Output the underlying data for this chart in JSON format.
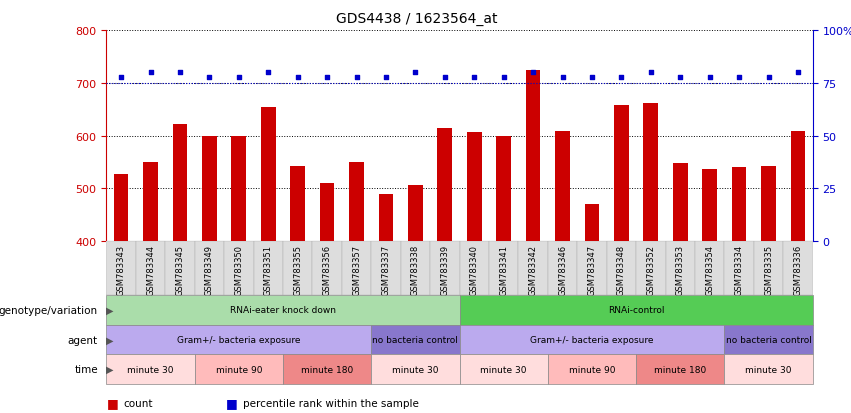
{
  "title": "GDS4438 / 1623564_at",
  "samples": [
    "GSM783343",
    "GSM783344",
    "GSM783345",
    "GSM783349",
    "GSM783350",
    "GSM783351",
    "GSM783355",
    "GSM783356",
    "GSM783357",
    "GSM783337",
    "GSM783338",
    "GSM783339",
    "GSM783340",
    "GSM783341",
    "GSM783342",
    "GSM783346",
    "GSM783347",
    "GSM783348",
    "GSM783352",
    "GSM783353",
    "GSM783354",
    "GSM783334",
    "GSM783335",
    "GSM783336"
  ],
  "counts": [
    528,
    550,
    622,
    600,
    600,
    654,
    543,
    510,
    550,
    490,
    507,
    614,
    607,
    600,
    725,
    608,
    471,
    658,
    662,
    549,
    537,
    540,
    543,
    608
  ],
  "percentiles": [
    78,
    80,
    80,
    78,
    78,
    80,
    78,
    78,
    78,
    78,
    80,
    78,
    78,
    78,
    80,
    78,
    78,
    78,
    80,
    78,
    78,
    78,
    78,
    80
  ],
  "ylim_left": [
    400,
    800
  ],
  "ylim_right": [
    0,
    100
  ],
  "yticks_left": [
    400,
    500,
    600,
    700,
    800
  ],
  "yticks_right": [
    0,
    25,
    50,
    75,
    100
  ],
  "bar_color": "#cc0000",
  "dot_color": "#0000cc",
  "annotation_row1": {
    "label": "genotype/variation",
    "groups": [
      {
        "text": "RNAi-eater knock down",
        "start": 0,
        "end": 12,
        "color": "#aaddaa"
      },
      {
        "text": "RNAi-control",
        "start": 12,
        "end": 24,
        "color": "#55cc55"
      }
    ]
  },
  "annotation_row2": {
    "label": "agent",
    "groups": [
      {
        "text": "Gram+/- bacteria exposure",
        "start": 0,
        "end": 9,
        "color": "#bbaaee"
      },
      {
        "text": "no bacteria control",
        "start": 9,
        "end": 12,
        "color": "#8877cc"
      },
      {
        "text": "Gram+/- bacteria exposure",
        "start": 12,
        "end": 21,
        "color": "#bbaaee"
      },
      {
        "text": "no bacteria control",
        "start": 21,
        "end": 24,
        "color": "#8877cc"
      }
    ]
  },
  "annotation_row3": {
    "label": "time",
    "groups": [
      {
        "text": "minute 30",
        "start": 0,
        "end": 3,
        "color": "#ffdddd"
      },
      {
        "text": "minute 90",
        "start": 3,
        "end": 6,
        "color": "#ffbbbb"
      },
      {
        "text": "minute 180",
        "start": 6,
        "end": 9,
        "color": "#ee8888"
      },
      {
        "text": "minute 30",
        "start": 9,
        "end": 12,
        "color": "#ffdddd"
      },
      {
        "text": "minute 30",
        "start": 12,
        "end": 15,
        "color": "#ffdddd"
      },
      {
        "text": "minute 90",
        "start": 15,
        "end": 18,
        "color": "#ffbbbb"
      },
      {
        "text": "minute 180",
        "start": 18,
        "end": 21,
        "color": "#ee8888"
      },
      {
        "text": "minute 30",
        "start": 21,
        "end": 24,
        "color": "#ffdddd"
      }
    ]
  },
  "legend": [
    {
      "color": "#cc0000",
      "label": "count"
    },
    {
      "color": "#0000cc",
      "label": "percentile rank within the sample"
    }
  ]
}
